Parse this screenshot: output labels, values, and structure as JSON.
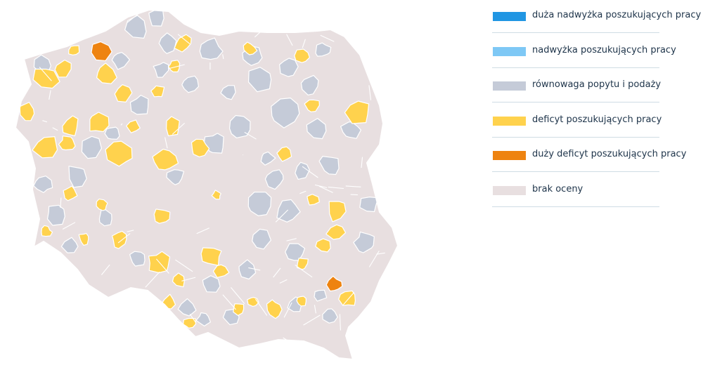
{
  "legend": {
    "items": [
      {
        "key": "duza-nadwyzka",
        "label": "duża nadwyżka poszukujących pracy",
        "color": "#2196e3"
      },
      {
        "key": "nadwyzka",
        "label": "nadwyżka poszukujących pracy",
        "color": "#7ec8f5"
      },
      {
        "key": "rownowaga",
        "label": "równowaga popytu i podaży",
        "color": "#c5cbd8"
      },
      {
        "key": "deficyt",
        "label": "deficyt poszukujących pracy",
        "color": "#ffd24d"
      },
      {
        "key": "duzy-deficyt",
        "label": "duży deficyt poszukujących pracy",
        "color": "#ee8310"
      },
      {
        "key": "brak-oceny",
        "label": "brak oceny",
        "color": "#e8dfe0"
      }
    ]
  },
  "map": {
    "country": "Polska",
    "background_category": "brak-oceny",
    "highlighted_category_counts": {
      "duzy-deficyt": 2,
      "deficyt": 46,
      "rownowaga": 44
    }
  }
}
